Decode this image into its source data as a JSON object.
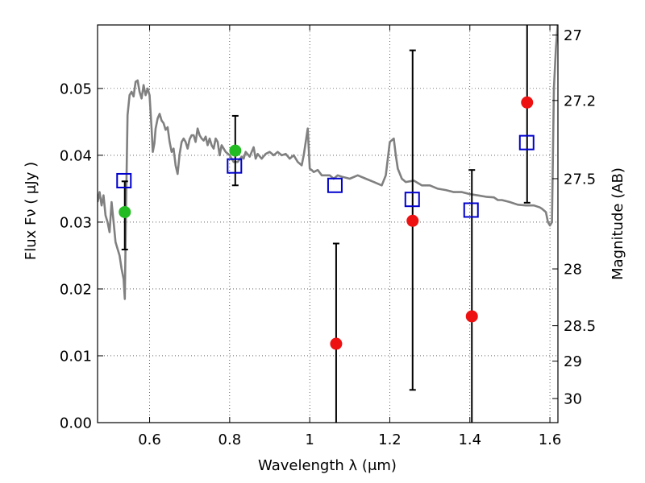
{
  "chart_data": {
    "type": "scatter",
    "title": "",
    "xlabel": "Wavelength  λ (μm)",
    "ylabel": "Flux  Fν  ( μJy )",
    "y2label": "Magnitude (AB)",
    "xlim": [
      0.47,
      1.62
    ],
    "ylim": [
      0.0,
      0.0595
    ],
    "grid": true,
    "x_ticks": [
      0.6,
      0.8,
      1.0,
      1.2,
      1.4,
      1.6
    ],
    "x_tick_labels": [
      "0.6",
      "0.8",
      "1",
      "1.2",
      "1.4",
      "1.6"
    ],
    "y_ticks": [
      0.0,
      0.01,
      0.02,
      0.03,
      0.04,
      0.05
    ],
    "y_tick_labels": [
      "0.00",
      "0.01",
      "0.02",
      "0.03",
      "0.04",
      "0.05"
    ],
    "y2_ticks": [
      {
        "label": "27",
        "flux": 0.058
      },
      {
        "label": "27.2",
        "flux": 0.0482
      },
      {
        "label": "27.5",
        "flux": 0.0365
      },
      {
        "label": "28",
        "flux": 0.023
      },
      {
        "label": "28.5",
        "flux": 0.0145
      },
      {
        "label": "29",
        "flux": 0.0092
      },
      {
        "label": "30",
        "flux": 0.0036
      }
    ],
    "colors": {
      "template": "#808080",
      "detection": "#22bb22",
      "non_detection": "#ee1111",
      "model": "#0000cc",
      "errorbar": "#000000"
    },
    "template_spectrum": {
      "x": [
        0.47,
        0.475,
        0.48,
        0.485,
        0.49,
        0.495,
        0.5,
        0.505,
        0.51,
        0.515,
        0.52,
        0.525,
        0.53,
        0.535,
        0.538,
        0.541,
        0.545,
        0.55,
        0.555,
        0.56,
        0.565,
        0.57,
        0.575,
        0.58,
        0.585,
        0.59,
        0.595,
        0.6,
        0.605,
        0.608,
        0.612,
        0.615,
        0.62,
        0.625,
        0.63,
        0.635,
        0.64,
        0.645,
        0.65,
        0.655,
        0.66,
        0.665,
        0.67,
        0.675,
        0.68,
        0.685,
        0.69,
        0.695,
        0.7,
        0.705,
        0.71,
        0.715,
        0.72,
        0.725,
        0.73,
        0.735,
        0.74,
        0.745,
        0.75,
        0.755,
        0.76,
        0.765,
        0.77,
        0.775,
        0.78,
        0.785,
        0.79,
        0.8,
        0.81,
        0.82,
        0.83,
        0.835,
        0.84,
        0.85,
        0.86,
        0.865,
        0.87,
        0.88,
        0.89,
        0.9,
        0.91,
        0.92,
        0.93,
        0.94,
        0.95,
        0.96,
        0.97,
        0.98,
        0.985,
        0.99,
        0.995,
        1.0,
        1.005,
        1.01,
        1.02,
        1.03,
        1.05,
        1.06,
        1.07,
        1.08,
        1.1,
        1.12,
        1.14,
        1.16,
        1.18,
        1.19,
        1.2,
        1.21,
        1.215,
        1.22,
        1.23,
        1.24,
        1.26,
        1.28,
        1.3,
        1.32,
        1.34,
        1.36,
        1.38,
        1.4,
        1.42,
        1.44,
        1.46,
        1.47,
        1.48,
        1.5,
        1.52,
        1.54,
        1.56,
        1.575,
        1.58,
        1.59,
        1.595,
        1.6,
        1.605,
        1.61,
        1.615,
        1.62
      ],
      "y": [
        0.033,
        0.0345,
        0.0325,
        0.034,
        0.031,
        0.03,
        0.0285,
        0.033,
        0.03,
        0.027,
        0.026,
        0.025,
        0.023,
        0.0215,
        0.0185,
        0.032,
        0.046,
        0.049,
        0.0495,
        0.0488,
        0.051,
        0.0512,
        0.0495,
        0.0485,
        0.0505,
        0.049,
        0.05,
        0.049,
        0.044,
        0.0405,
        0.0418,
        0.044,
        0.0455,
        0.0462,
        0.0452,
        0.0448,
        0.0438,
        0.0442,
        0.042,
        0.0405,
        0.041,
        0.0385,
        0.0372,
        0.0402,
        0.042,
        0.0425,
        0.042,
        0.041,
        0.0424,
        0.043,
        0.043,
        0.042,
        0.044,
        0.043,
        0.0425,
        0.0422,
        0.0428,
        0.0415,
        0.0425,
        0.0415,
        0.041,
        0.0425,
        0.042,
        0.04,
        0.0415,
        0.041,
        0.0405,
        0.04,
        0.039,
        0.039,
        0.0398,
        0.0395,
        0.0405,
        0.0398,
        0.0412,
        0.0395,
        0.0402,
        0.0395,
        0.0402,
        0.0405,
        0.04,
        0.0405,
        0.04,
        0.0402,
        0.0395,
        0.04,
        0.039,
        0.0385,
        0.04,
        0.042,
        0.044,
        0.038,
        0.0378,
        0.0375,
        0.0378,
        0.037,
        0.037,
        0.0365,
        0.037,
        0.0368,
        0.0365,
        0.037,
        0.0365,
        0.036,
        0.0355,
        0.037,
        0.042,
        0.0425,
        0.04,
        0.038,
        0.0365,
        0.036,
        0.0362,
        0.0355,
        0.0355,
        0.035,
        0.0348,
        0.0345,
        0.0345,
        0.0342,
        0.034,
        0.0338,
        0.0337,
        0.0333,
        0.0333,
        0.033,
        0.0326,
        0.0325,
        0.0325,
        0.0322,
        0.032,
        0.0315,
        0.03,
        0.0295,
        0.03,
        0.05,
        0.056,
        0.06
      ]
    },
    "series": [
      {
        "marker": "filled-circle",
        "color": "#22bb22",
        "points": [
          {
            "x": 0.538,
            "y": 0.0315
          },
          {
            "x": 0.814,
            "y": 0.0407
          }
        ]
      },
      {
        "marker": "filled-circle",
        "color": "#ee1111",
        "points": [
          {
            "x": 1.066,
            "y": 0.0118
          },
          {
            "x": 1.257,
            "y": 0.0302
          },
          {
            "x": 1.405,
            "y": 0.0159
          },
          {
            "x": 1.543,
            "y": 0.0479
          }
        ]
      },
      {
        "marker": "open-square",
        "color": "#0000cc",
        "points": [
          {
            "x": 0.536,
            "y": 0.0362
          },
          {
            "x": 0.812,
            "y": 0.0384
          },
          {
            "x": 1.063,
            "y": 0.0355
          },
          {
            "x": 1.256,
            "y": 0.0334
          },
          {
            "x": 1.403,
            "y": 0.0318
          },
          {
            "x": 1.542,
            "y": 0.0419
          }
        ]
      }
    ],
    "error_bars": [
      {
        "x": 0.538,
        "low": 0.0259,
        "high": 0.0361
      },
      {
        "x": 0.814,
        "low": 0.0355,
        "high": 0.0459
      },
      {
        "x": 1.066,
        "low": 0.0,
        "high": 0.0268
      },
      {
        "x": 1.257,
        "low": 0.0049,
        "high": 0.0557
      },
      {
        "x": 1.405,
        "low": 0.0,
        "high": 0.0378
      },
      {
        "x": 1.543,
        "low": 0.0329,
        "high": 0.06
      }
    ]
  }
}
